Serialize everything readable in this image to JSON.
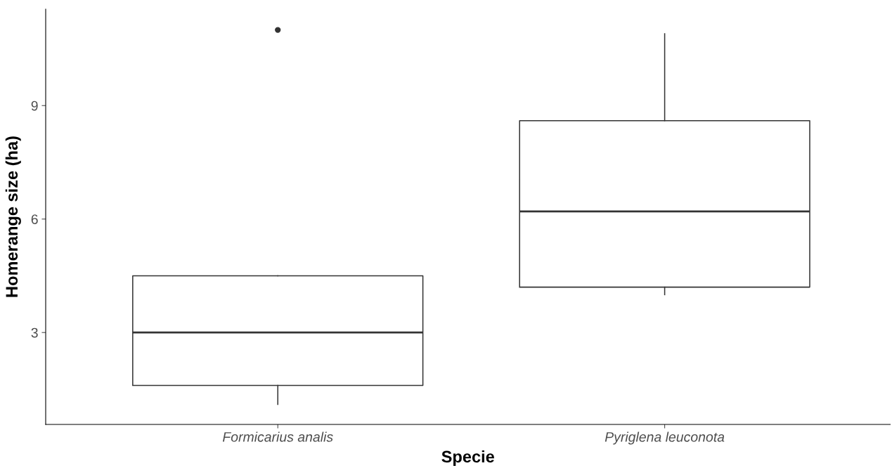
{
  "chart_data": {
    "type": "box",
    "xlabel": "Specie",
    "ylabel": "Homerange size (ha)",
    "categories": [
      "Formicarius analis",
      "Pyriglena leuconota"
    ],
    "boxes": [
      {
        "low": 1.1,
        "q1": 1.6,
        "median": 3.0,
        "q3": 4.5,
        "high": 4.5,
        "outliers": [
          11.0
        ]
      },
      {
        "low": 4.0,
        "q1": 4.2,
        "median": 6.2,
        "q3": 8.6,
        "high": 10.9
      }
    ],
    "ylim": [
      0.57,
      11.55
    ],
    "yticks": [
      3,
      6,
      9
    ],
    "grid": false,
    "legend": false
  }
}
